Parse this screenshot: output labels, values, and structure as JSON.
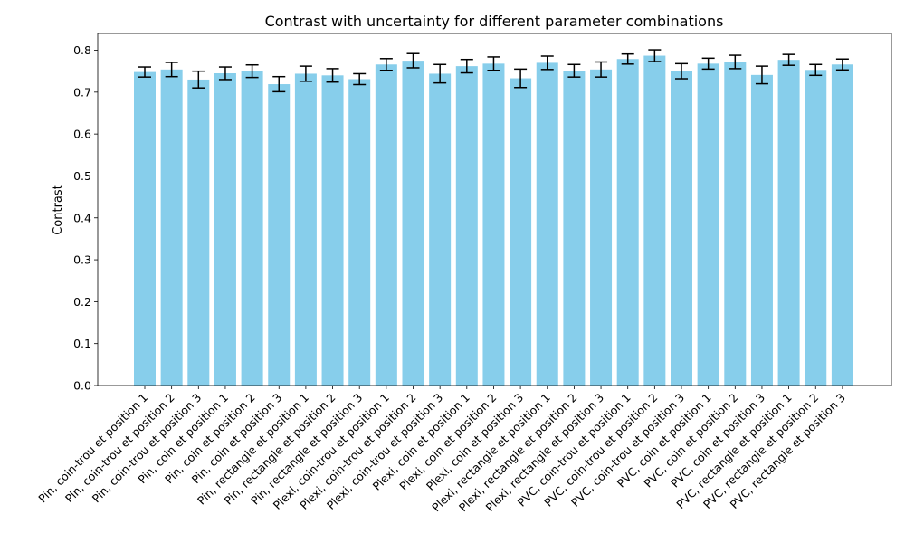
{
  "chart_data": {
    "type": "bar",
    "title": "Contrast with uncertainty for different parameter combinations",
    "xlabel": "",
    "ylabel": "Contrast",
    "ylim": [
      0,
      0.84
    ],
    "yticks": [
      0.0,
      0.1,
      0.2,
      0.3,
      0.4,
      0.5,
      0.6,
      0.7,
      0.8
    ],
    "ytick_labels": [
      "0.0",
      "0.1",
      "0.2",
      "0.3",
      "0.4",
      "0.5",
      "0.6",
      "0.7",
      "0.8"
    ],
    "bar_color": "#87ceeb",
    "errorbar_color": "#000000",
    "categories": [
      "Pin, coin-trou et position 1",
      "Pin, coin-trou et position 2",
      "Pin, coin-trou et position 3",
      "Pin, coin et position 1",
      "Pin, coin et position 2",
      "Pin, coin et position 3",
      "Pin, rectangle et position 1",
      "Pin, rectangle et position 2",
      "Pin, rectangle et position 3",
      "Plexi, coin-trou et position 1",
      "Plexi, coin-trou et position 2",
      "Plexi, coin-trou et position 3",
      "Plexi, coin et position 1",
      "Plexi, coin et position 2",
      "Plexi, coin et position 3",
      "Plexi, rectangle et position 1",
      "Plexi, rectangle et position 2",
      "Plexi, rectangle et position 3",
      "PVC, coin-trou et position 1",
      "PVC, coin-trou et position 2",
      "PVC, coin-trou et position 3",
      "PVC, coin et position 1",
      "PVC, coin et position 2",
      "PVC, coin et position 3",
      "PVC, rectangle et position 1",
      "PVC, rectangle et position 2",
      "PVC, rectangle et position 3"
    ],
    "values": [
      0.748,
      0.754,
      0.73,
      0.745,
      0.75,
      0.719,
      0.744,
      0.74,
      0.731,
      0.766,
      0.775,
      0.744,
      0.762,
      0.768,
      0.733,
      0.77,
      0.751,
      0.754,
      0.779,
      0.787,
      0.75,
      0.768,
      0.772,
      0.741,
      0.777,
      0.753,
      0.766
    ],
    "errors": [
      0.012,
      0.017,
      0.02,
      0.015,
      0.015,
      0.018,
      0.018,
      0.016,
      0.013,
      0.014,
      0.017,
      0.022,
      0.016,
      0.016,
      0.022,
      0.016,
      0.015,
      0.018,
      0.012,
      0.014,
      0.018,
      0.013,
      0.016,
      0.021,
      0.013,
      0.013,
      0.013
    ]
  }
}
